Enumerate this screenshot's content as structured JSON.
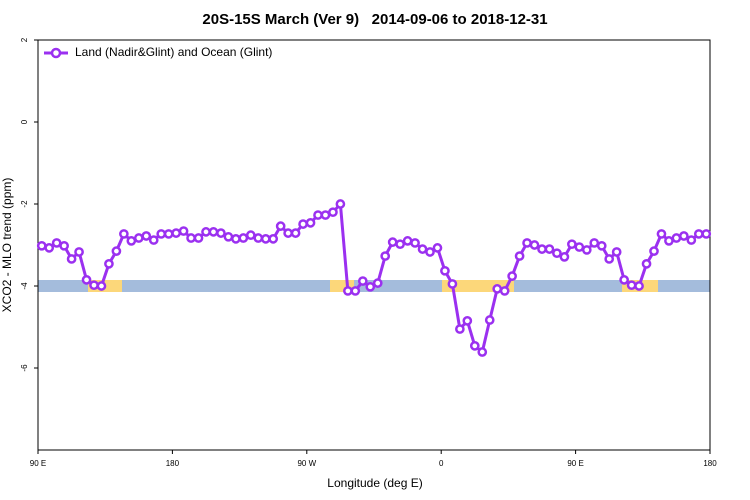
{
  "chart_data": {
    "type": "line",
    "title": "20S-15S March (Ver 9)   2014-09-06 to 2018-12-31",
    "x_label": "Longitude (deg E)",
    "y_label": "XCO2 - MLO trend (ppm)",
    "x": [
      92.5,
      97.5,
      102.5,
      107.5,
      112.5,
      117.5,
      122.5,
      127.5,
      132.5,
      137.5,
      142.5,
      147.5,
      152.5,
      157.5,
      162.5,
      167.5,
      172.5,
      177.5,
      182.5,
      187.5,
      192.5,
      197.5,
      202.5,
      207.5,
      212.5,
      217.5,
      222.5,
      227.5,
      232.5,
      237.5,
      242.5,
      247.5,
      252.5,
      257.5,
      262.5,
      267.5,
      272.5,
      277.5,
      282.5,
      287.5,
      292.5,
      297.5,
      302.5,
      307.5,
      312.5,
      317.5,
      322.5,
      327.5,
      332.5,
      337.5,
      342.5,
      347.5,
      352.5,
      357.5,
      362.5,
      367.5,
      372.5,
      377.5,
      382.5,
      387.5,
      392.5,
      397.5,
      402.5,
      407.5,
      412.5,
      417.5,
      422.5,
      427.5,
      432.5,
      437.5,
      442.5,
      447.5,
      452.5,
      457.5,
      462.5,
      467.5,
      472.5,
      477.5,
      482.5,
      487.5,
      492.5,
      497.5,
      502.5,
      507.5,
      512.5,
      517.5,
      522.5,
      527.5,
      532.5,
      537.5
    ],
    "series": [
      {
        "name": "Land (Nadir&Glint) and Ocean (Glint)",
        "color": "#9b30f0",
        "values": [
          -3.02,
          -3.07,
          -2.95,
          -3.02,
          -3.34,
          -3.17,
          -3.85,
          -3.98,
          -4.0,
          -3.46,
          -3.15,
          -2.73,
          -2.9,
          -2.83,
          -2.78,
          -2.88,
          -2.73,
          -2.73,
          -2.71,
          -2.66,
          -2.83,
          -2.83,
          -2.68,
          -2.68,
          -2.71,
          -2.8,
          -2.85,
          -2.83,
          -2.76,
          -2.83,
          -2.85,
          -2.85,
          -2.54,
          -2.71,
          -2.71,
          -2.49,
          -2.46,
          -2.27,
          -2.27,
          -2.2,
          -2.0,
          -4.12,
          -4.12,
          -3.88,
          -4.02,
          -3.93,
          -3.27,
          -2.93,
          -2.98,
          -2.9,
          -2.95,
          -3.1,
          -3.17,
          -3.07,
          -3.63,
          -3.95,
          -5.05,
          -4.85,
          -5.46,
          -5.61,
          -4.83,
          -4.07,
          -4.12,
          -3.76,
          -3.27,
          -2.95,
          -3.0,
          -3.1,
          -3.1,
          -3.2,
          -3.29,
          -2.98,
          -3.05,
          -3.12,
          -2.95,
          -3.02,
          -3.34,
          -3.17,
          -3.85,
          -3.98,
          -4.0,
          -3.46,
          -3.15,
          -2.73,
          -2.9,
          -2.83,
          -2.78,
          -2.88,
          -2.73,
          -2.73
        ]
      }
    ],
    "xlim": [
      90,
      540
    ],
    "xticks": [
      {
        "value": 90,
        "label": "90 E"
      },
      {
        "value": 180,
        "label": "180"
      },
      {
        "value": 270,
        "label": "90 W"
      },
      {
        "value": 360,
        "label": "0"
      },
      {
        "value": 450,
        "label": "90 E"
      },
      {
        "value": 540,
        "label": "180"
      }
    ],
    "ylim": [
      -8,
      2
    ],
    "yticks": [
      2,
      0,
      -2,
      -4,
      -6
    ],
    "legend": "upper left"
  }
}
